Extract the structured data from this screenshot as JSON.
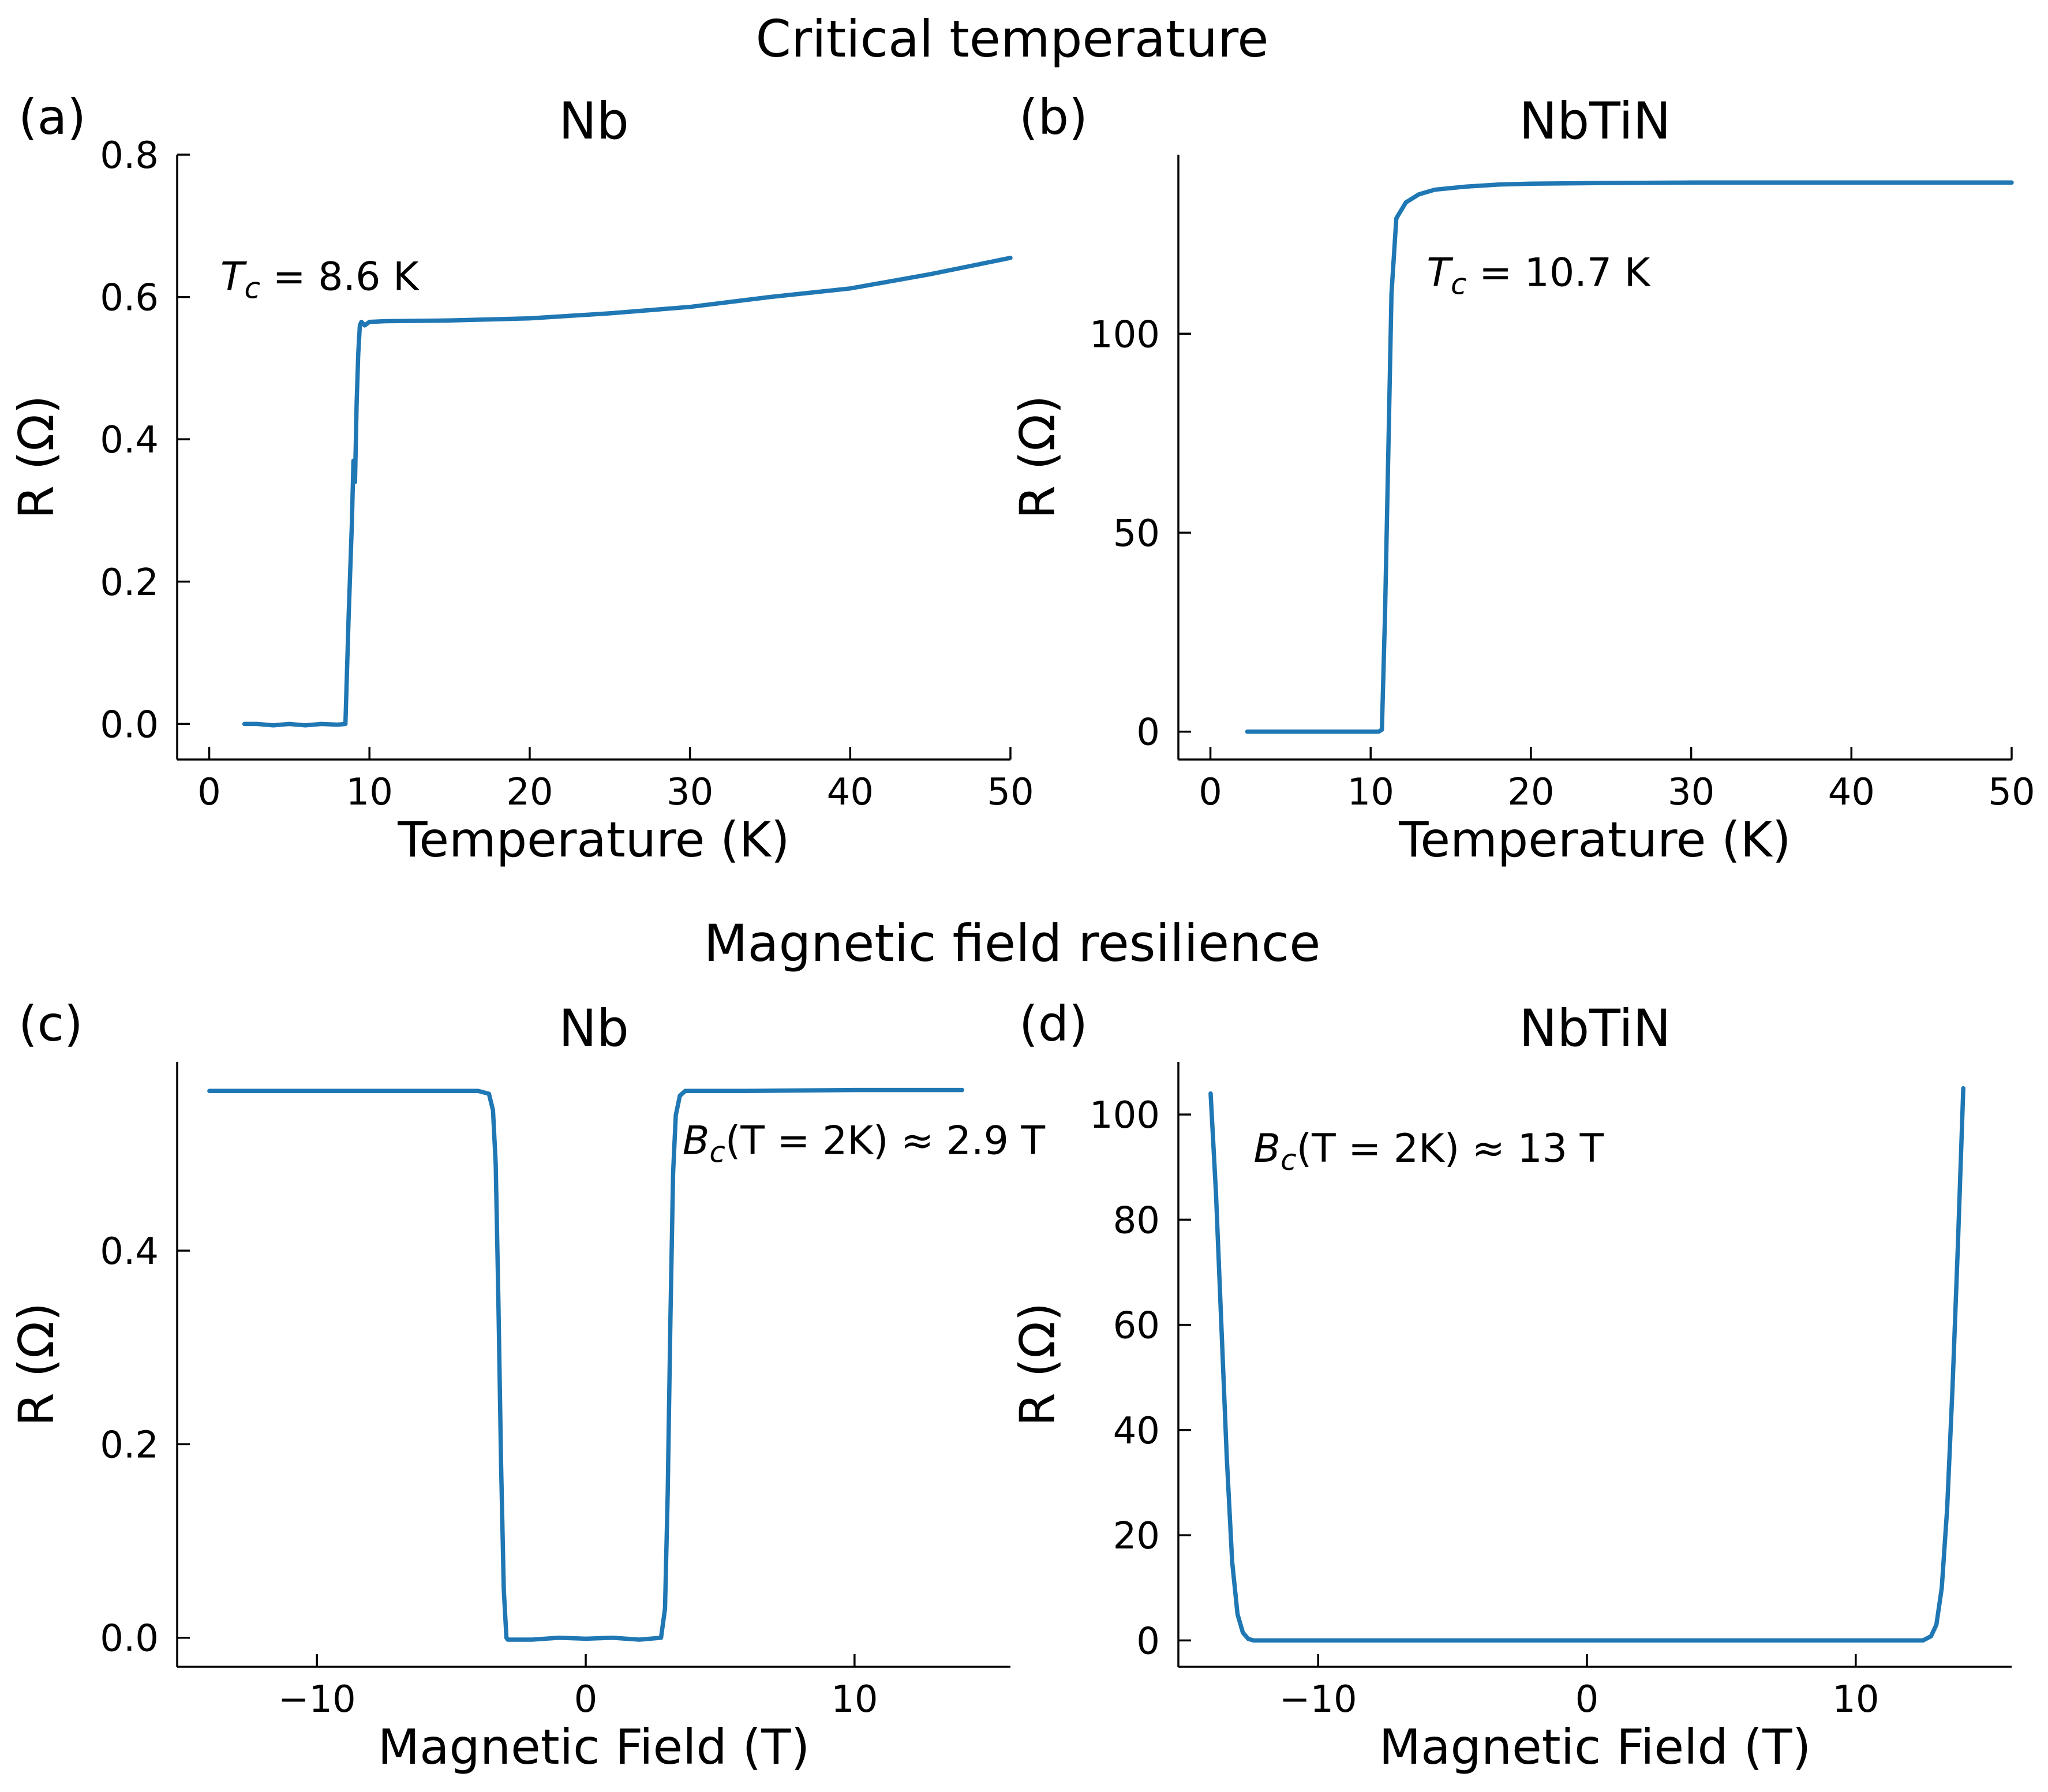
{
  "figure": {
    "section_titles": [
      "Critical temperature",
      "Magnetic field resilience"
    ]
  },
  "colors": {
    "line": "#1f77b4"
  },
  "chart_data": [
    {
      "type": "line",
      "panel_label": "(a)",
      "title": "Nb",
      "xlabel": "Temperature (K)",
      "ylabel": "R (Ω)",
      "xlim": [
        -2,
        50
      ],
      "ylim": [
        -0.05,
        0.8
      ],
      "xticks": [
        0,
        10,
        20,
        30,
        40,
        50
      ],
      "xticklabels": [
        "0",
        "10",
        "20",
        "30",
        "40",
        "50"
      ],
      "yticks": [
        0.0,
        0.2,
        0.4,
        0.6,
        0.8
      ],
      "yticklabels": [
        "0.0",
        "0.2",
        "0.4",
        "0.6",
        "0.8"
      ],
      "grid": false,
      "annotation": {
        "text": "T_c = 8.6 K",
        "base": "T",
        "sub": "c",
        "rest": " = 8.6 K",
        "x": 0.7,
        "y": 0.61
      },
      "series": [
        {
          "x": [
            2.2,
            3,
            4,
            5,
            6,
            7,
            8,
            8.5,
            8.7,
            8.9,
            9.0,
            9.1,
            9.2,
            9.3,
            9.4,
            9.5,
            9.7,
            10,
            11,
            15,
            20,
            25,
            30,
            35,
            40,
            45,
            50
          ],
          "y": [
            0.0,
            0.0,
            -0.002,
            0.0,
            -0.002,
            0.0,
            -0.001,
            0.0,
            0.15,
            0.28,
            0.37,
            0.34,
            0.45,
            0.52,
            0.56,
            0.565,
            0.56,
            0.565,
            0.566,
            0.567,
            0.57,
            0.577,
            0.586,
            0.6,
            0.612,
            0.632,
            0.655
          ]
        }
      ]
    },
    {
      "type": "line",
      "panel_label": "(b)",
      "title": "NbTiN",
      "xlabel": "Temperature (K)",
      "ylabel": "R (Ω)",
      "xlim": [
        -2,
        50
      ],
      "ylim": [
        -7,
        145
      ],
      "xticks": [
        0,
        10,
        20,
        30,
        40,
        50
      ],
      "xticklabels": [
        "0",
        "10",
        "20",
        "30",
        "40",
        "50"
      ],
      "yticks": [
        0,
        50,
        100
      ],
      "yticklabels": [
        "0",
        "50",
        "100"
      ],
      "grid": false,
      "annotation": {
        "text": "T_c = 10.7 K",
        "base": "T",
        "sub": "c",
        "rest": " = 10.7 K",
        "x": 13.5,
        "y": 112
      },
      "series": [
        {
          "x": [
            2.3,
            5,
            8,
            10,
            10.5,
            10.7,
            10.9,
            11.1,
            11.3,
            11.6,
            12.2,
            13,
            14,
            16,
            18,
            20,
            25,
            30,
            40,
            50
          ],
          "y": [
            0,
            0,
            0,
            0,
            0,
            0.5,
            30,
            70,
            110,
            129,
            133,
            135,
            136.2,
            137,
            137.5,
            137.7,
            137.9,
            138,
            138,
            138
          ]
        }
      ]
    },
    {
      "type": "line",
      "panel_label": "(c)",
      "title": "Nb",
      "xlabel": "Magnetic Field (T)",
      "ylabel": "R (Ω)",
      "xlim": [
        -15.2,
        15.8
      ],
      "ylim": [
        -0.03,
        0.595
      ],
      "xticks": [
        -10,
        0,
        10
      ],
      "xticklabels": [
        "−10",
        "0",
        "10"
      ],
      "yticks": [
        0.0,
        0.2,
        0.4
      ],
      "yticklabels": [
        "0.0",
        "0.2",
        "0.4"
      ],
      "grid": false,
      "annotation": {
        "text": "B_c(T = 2K) ≈ 2.9 T",
        "base": "B",
        "sub": "c",
        "rest": "(T = 2K) ≈ 2.9 T",
        "x": 3.6,
        "y": 0.5
      },
      "series": [
        {
          "x": [
            -14,
            -10,
            -6,
            -4,
            -3.6,
            -3.45,
            -3.35,
            -3.25,
            -3.15,
            -3.05,
            -2.95,
            -2.9,
            -2.0,
            -1,
            0,
            1,
            2.0,
            2.8,
            2.95,
            3.05,
            3.15,
            3.25,
            3.35,
            3.5,
            3.7,
            4,
            6,
            10,
            14
          ],
          "y": [
            0.565,
            0.565,
            0.565,
            0.565,
            0.562,
            0.545,
            0.49,
            0.35,
            0.18,
            0.05,
            0.0,
            -0.002,
            -0.002,
            0.0,
            -0.001,
            0.0,
            -0.002,
            0.0,
            0.03,
            0.15,
            0.33,
            0.48,
            0.54,
            0.56,
            0.565,
            0.565,
            0.565,
            0.566,
            0.566
          ]
        }
      ]
    },
    {
      "type": "line",
      "panel_label": "(d)",
      "title": "NbTiN",
      "xlabel": "Magnetic Field (T)",
      "ylabel": "R (Ω)",
      "xlim": [
        -15.2,
        15.8
      ],
      "ylim": [
        -5,
        110
      ],
      "xticks": [
        -10,
        0,
        10
      ],
      "xticklabels": [
        "−10",
        "0",
        "10"
      ],
      "yticks": [
        0,
        20,
        40,
        60,
        80,
        100
      ],
      "yticklabels": [
        "0",
        "20",
        "40",
        "60",
        "80",
        "100"
      ],
      "grid": false,
      "annotation": {
        "text": "B_c(T = 2K) ≈ 13 T",
        "base": "B",
        "sub": "c",
        "rest": "(T = 2K) ≈ 13 T",
        "x": -12.4,
        "y": 91
      },
      "series": [
        {
          "x": [
            -14,
            -13.8,
            -13.6,
            -13.4,
            -13.2,
            -13.0,
            -12.8,
            -12.6,
            -12.4,
            -12,
            -10,
            0,
            10,
            12.5,
            12.8,
            13.0,
            13.2,
            13.4,
            13.6,
            13.8,
            14.0
          ],
          "y": [
            104,
            85,
            60,
            35,
            15,
            5,
            1.5,
            0.3,
            0,
            0,
            0,
            0,
            0,
            0,
            0.8,
            3,
            10,
            25,
            48,
            75,
            105
          ]
        }
      ]
    }
  ]
}
